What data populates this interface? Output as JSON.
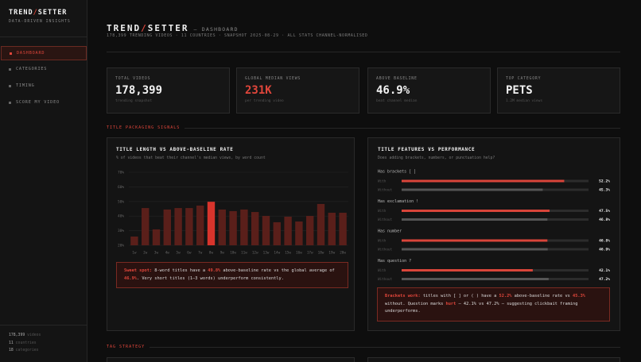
{
  "sidebar": {
    "brand": [
      "TREND",
      "/",
      "SETTER"
    ],
    "tagline": "DATA-DRIVEN INSIGHTS",
    "nav": [
      "DASHBOARD",
      "CATEGORIES",
      "TIMING",
      "SCORE MY VIDEO"
    ],
    "footer": [
      {
        "value": "178,399",
        "label": "videos"
      },
      {
        "value": "11",
        "label": "countries"
      },
      {
        "value": "18",
        "label": "categories"
      }
    ]
  },
  "header": {
    "brand": [
      "TREND",
      "/",
      "SETTER"
    ],
    "suffix": "— DASHBOARD",
    "subtitle": "178,399 TRENDING VIDEOS · 11 COUNTRIES · SNAPSHOT 2025-08-29 · ALL STATS CHANNEL-NORMALISED"
  },
  "kpis": [
    {
      "label": "TOTAL VIDEOS",
      "value": "178,399",
      "note": "trending snapshot",
      "color": "#f2f2f2"
    },
    {
      "label": "GLOBAL MEDIAN VIEWS",
      "value": "231K",
      "note": "per trending video",
      "color": "#e0463b"
    },
    {
      "label": "ABOVE BASELINE",
      "value": "46.9%",
      "note": "beat channel median",
      "color": "#f2f2f2"
    },
    {
      "label": "TOP CATEGORY",
      "value": "PETS",
      "note": "1.2M median views",
      "color": "#f2f2f2"
    }
  ],
  "sections": [
    "TITLE PACKAGING SIGNALS",
    "TAG STRATEGY"
  ],
  "chart_data": [
    {
      "type": "bar",
      "title": "TITLE LENGTH VS ABOVE-BASELINE RATE",
      "subtitle": "% of videos that beat their channel's median views, by word count",
      "categories": [
        "1w",
        "2w",
        "3w",
        "4w",
        "5w",
        "6w",
        "7w",
        "8w",
        "9w",
        "10w",
        "11w",
        "12w",
        "13w",
        "14w",
        "15w",
        "16w",
        "17w",
        "18w",
        "19w",
        "20w"
      ],
      "values": [
        26,
        45.5,
        30.9,
        44.5,
        45.5,
        45.5,
        47.2,
        49.8,
        44.5,
        43.4,
        44.5,
        42.8,
        40.1,
        35.8,
        39.6,
        36.3,
        40.1,
        48.3,
        42.3,
        42.3
      ],
      "colors": [
        "#5a1f1a",
        "#5a1f1a",
        "#5a1f1a",
        "#5a1f1a",
        "#5a1f1a",
        "#5a1f1a",
        "#5a1f1a",
        "#d8342c",
        "#5a1f1a",
        "#5a1f1a",
        "#5a1f1a",
        "#5a1f1a",
        "#5a1f1a",
        "#5a1f1a",
        "#5a1f1a",
        "#5a1f1a",
        "#5a1f1a",
        "#5a1f1a",
        "#5a1f1a",
        "#5a1f1a"
      ],
      "ylim": [
        20,
        70
      ],
      "yticks": [
        {
          "value": 20,
          "label": "20%"
        },
        {
          "value": 30,
          "label": "30%"
        },
        {
          "value": 40,
          "label": "40%"
        },
        {
          "value": 50,
          "label": "50%"
        },
        {
          "value": 60,
          "label": "60%"
        },
        {
          "value": 70,
          "label": "70%"
        }
      ],
      "grid": true
    },
    {
      "type": "hbar",
      "title": "TITLE FEATURES VS PERFORMANCE",
      "subtitle": "Does adding brackets, numbers, or punctuation help?",
      "categories": [
        "Has brackets [ ]",
        "Has exclamation !",
        "Has number",
        "Has question ?"
      ],
      "series": [
        {
          "name": "With",
          "color": "#d9453a",
          "values": [
            52.2,
            47.5,
            46.8,
            42.1
          ],
          "value_labels": [
            "52.2%",
            "47.5%",
            "46.8%",
            "42.1%"
          ]
        },
        {
          "name": "Without",
          "color": "#555555",
          "values": [
            45.3,
            46.8,
            46.9,
            47.2
          ],
          "value_labels": [
            "45.3%",
            "46.8%",
            "46.9%",
            "47.2%"
          ]
        }
      ],
      "xlim": [
        0,
        60
      ]
    }
  ],
  "callouts": [
    [
      {
        "text": "Sweet spot:",
        "accent": true
      },
      {
        "text": " 8-word titles have a ",
        "accent": false
      },
      {
        "text": "49.8%",
        "accent": true
      },
      {
        "text": " above-baseline rate vs the global average of ",
        "accent": false
      },
      {
        "text": "46.9%",
        "accent": true
      },
      {
        "text": ". Very short titles (1–3 words) underperform consistently.",
        "accent": false
      }
    ],
    [
      {
        "text": "Brackets work:",
        "accent": true
      },
      {
        "text": " titles with [ ] or ( ) have a ",
        "accent": false
      },
      {
        "text": "52.2%",
        "accent": true
      },
      {
        "text": " above-baseline rate vs ",
        "accent": false
      },
      {
        "text": "45.3%",
        "accent": true
      },
      {
        "text": " without. Question marks ",
        "accent": false
      },
      {
        "text": "hurt",
        "accent": true
      },
      {
        "text": " — 42.1% vs 47.2% — suggesting clickbait framing underperforms.",
        "accent": false
      }
    ]
  ]
}
